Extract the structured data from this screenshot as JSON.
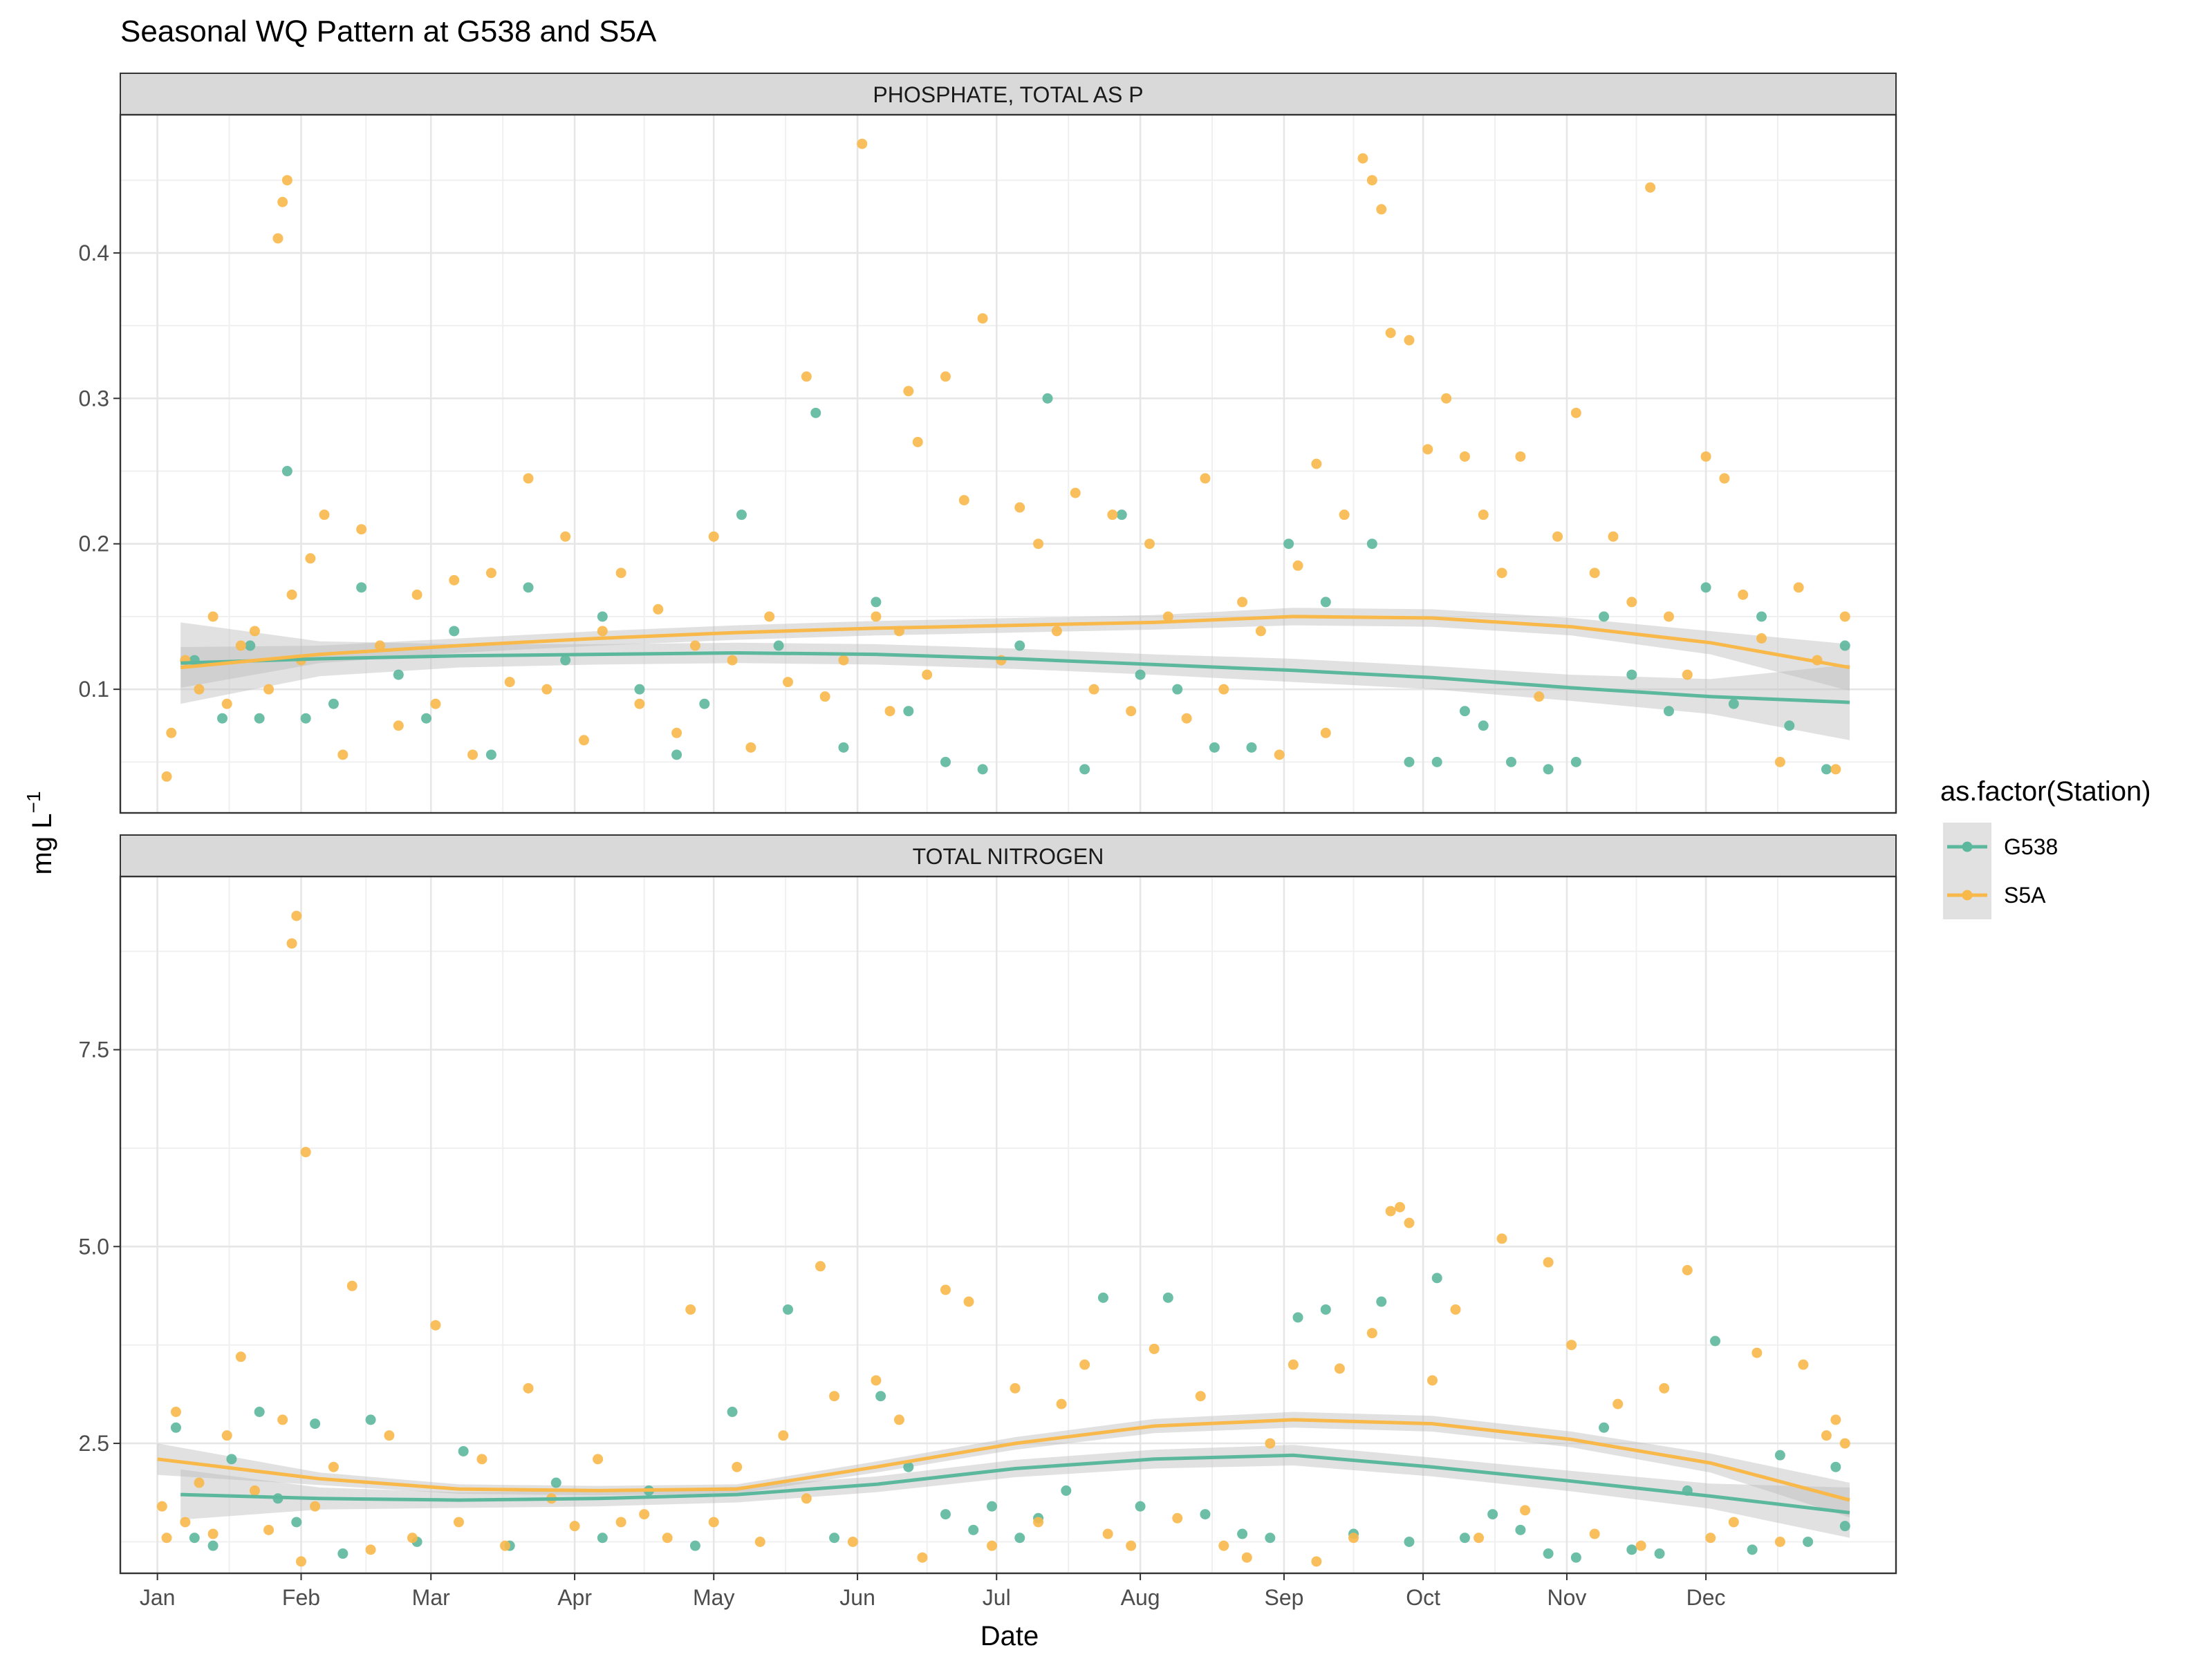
{
  "chart_data": {
    "type": "scatter",
    "title": "Seasonal WQ Pattern at G538 and S5A",
    "xlabel": "Date",
    "ylabel": "mg L",
    "ylabel_superscript": "−1",
    "x_ticks": [
      "Jan",
      "Feb",
      "Mar",
      "Apr",
      "May",
      "Jun",
      "Jul",
      "Aug",
      "Sep",
      "Oct",
      "Nov",
      "Dec"
    ],
    "x_units": "day of year",
    "xlim": [
      -8,
      375
    ],
    "grid": true,
    "legend": {
      "title": "as.factor(Station)",
      "position": "right",
      "entries": [
        "G538",
        "S5A"
      ]
    },
    "colors": {
      "G538": "#5cb89c",
      "S5A": "#f8b84a",
      "ribbon": "#bdbdbd"
    },
    "facets": [
      {
        "strip": "PHOSPHATE, TOTAL AS P",
        "ylim": [
          0.015,
          0.495
        ],
        "y_ticks": [
          0.1,
          0.2,
          0.3,
          0.4
        ],
        "y_tick_labels": [
          "0.1",
          "0.2",
          "0.3",
          "0.4"
        ],
        "series": [
          {
            "name": "G538",
            "trend_x": [
              5,
              35,
              65,
              95,
              125,
              155,
              185,
              215,
              245,
              275,
              305,
              335,
              365
            ],
            "trend_y": [
              0.118,
              0.121,
              0.123,
              0.124,
              0.125,
              0.124,
              0.121,
              0.117,
              0.113,
              0.108,
              0.101,
              0.095,
              0.091
            ],
            "ribbon_hw": [
              0.028,
              0.012,
              0.008,
              0.007,
              0.007,
              0.007,
              0.007,
              0.007,
              0.008,
              0.008,
              0.009,
              0.012,
              0.026
            ],
            "points_x": [
              8,
              14,
              20,
              22,
              28,
              32,
              38,
              44,
              52,
              58,
              64,
              72,
              80,
              88,
              96,
              104,
              112,
              118,
              126,
              134,
              142,
              148,
              155,
              162,
              170,
              178,
              186,
              192,
              200,
              208,
              212,
              220,
              228,
              236,
              244,
              252,
              262,
              270,
              276,
              282,
              286,
              292,
              300,
              306,
              312,
              318,
              326,
              334,
              340,
              346,
              352,
              360,
              364
            ],
            "points_y": [
              0.12,
              0.08,
              0.13,
              0.08,
              0.25,
              0.08,
              0.09,
              0.17,
              0.11,
              0.08,
              0.14,
              0.055,
              0.17,
              0.12,
              0.15,
              0.1,
              0.055,
              0.09,
              0.22,
              0.13,
              0.29,
              0.06,
              0.16,
              0.085,
              0.05,
              0.045,
              0.13,
              0.3,
              0.045,
              0.22,
              0.11,
              0.1,
              0.06,
              0.06,
              0.2,
              0.16,
              0.2,
              0.05,
              0.05,
              0.085,
              0.075,
              0.05,
              0.045,
              0.05,
              0.15,
              0.11,
              0.085,
              0.17,
              0.09,
              0.15,
              0.075,
              0.045,
              0.13
            ]
          },
          {
            "name": "S5A",
            "trend_x": [
              5,
              35,
              65,
              95,
              125,
              155,
              185,
              215,
              245,
              275,
              305,
              335,
              365
            ],
            "trend_y": [
              0.115,
              0.124,
              0.13,
              0.135,
              0.139,
              0.142,
              0.144,
              0.146,
              0.15,
              0.149,
              0.143,
              0.132,
              0.115
            ],
            "ribbon_hw": [
              0.014,
              0.006,
              0.005,
              0.005,
              0.005,
              0.005,
              0.005,
              0.005,
              0.006,
              0.006,
              0.006,
              0.008,
              0.016
            ],
            "points_x": [
              2,
              3,
              6,
              9,
              12,
              15,
              18,
              21,
              24,
              26,
              27,
              28,
              29,
              31,
              33,
              36,
              40,
              44,
              48,
              52,
              56,
              60,
              64,
              68,
              72,
              76,
              80,
              84,
              88,
              92,
              96,
              100,
              104,
              108,
              112,
              116,
              120,
              124,
              128,
              132,
              136,
              140,
              144,
              148,
              152,
              155,
              158,
              160,
              162,
              164,
              166,
              170,
              174,
              178,
              182,
              186,
              190,
              194,
              198,
              202,
              206,
              210,
              214,
              218,
              222,
              226,
              230,
              234,
              238,
              242,
              246,
              250,
              252,
              256,
              260,
              262,
              264,
              266,
              270,
              274,
              278,
              282,
              286,
              290,
              294,
              298,
              302,
              306,
              310,
              314,
              318,
              322,
              326,
              330,
              334,
              338,
              342,
              346,
              350,
              354,
              358,
              362,
              364
            ],
            "points_y": [
              0.04,
              0.07,
              0.12,
              0.1,
              0.15,
              0.09,
              0.13,
              0.14,
              0.1,
              0.41,
              0.435,
              0.45,
              0.165,
              0.12,
              0.19,
              0.22,
              0.055,
              0.21,
              0.13,
              0.075,
              0.165,
              0.09,
              0.175,
              0.055,
              0.18,
              0.105,
              0.245,
              0.1,
              0.205,
              0.065,
              0.14,
              0.18,
              0.09,
              0.155,
              0.07,
              0.13,
              0.205,
              0.12,
              0.06,
              0.15,
              0.105,
              0.315,
              0.095,
              0.12,
              0.475,
              0.15,
              0.085,
              0.14,
              0.305,
              0.27,
              0.11,
              0.315,
              0.23,
              0.355,
              0.12,
              0.225,
              0.2,
              0.14,
              0.235,
              0.1,
              0.22,
              0.085,
              0.2,
              0.15,
              0.08,
              0.245,
              0.1,
              0.16,
              0.14,
              0.055,
              0.185,
              0.255,
              0.07,
              0.22,
              0.465,
              0.45,
              0.43,
              0.345,
              0.34,
              0.265,
              0.3,
              0.26,
              0.22,
              0.18,
              0.26,
              0.095,
              0.205,
              0.29,
              0.18,
              0.205,
              0.16,
              0.445,
              0.15,
              0.11,
              0.26,
              0.245,
              0.165,
              0.135,
              0.05,
              0.17,
              0.12,
              0.045,
              0.15
            ]
          }
        ]
      },
      {
        "strip": "TOTAL NITROGEN",
        "ylim": [
          0.85,
          9.7
        ],
        "y_ticks": [
          2.5,
          5.0,
          7.5
        ],
        "y_tick_labels": [
          "2.5",
          "5.0",
          "7.5"
        ],
        "series": [
          {
            "name": "G538",
            "trend_x": [
              5,
              35,
              65,
              95,
              125,
              155,
              185,
              215,
              245,
              275,
              305,
              335,
              365
            ],
            "trend_y": [
              1.85,
              1.8,
              1.78,
              1.8,
              1.85,
              1.98,
              2.18,
              2.3,
              2.35,
              2.2,
              2.02,
              1.83,
              1.62
            ],
            "ribbon_hw": [
              0.32,
              0.14,
              0.1,
              0.1,
              0.1,
              0.1,
              0.11,
              0.12,
              0.13,
              0.12,
              0.13,
              0.16,
              0.32
            ],
            "points_x": [
              4,
              8,
              12,
              16,
              22,
              26,
              30,
              34,
              40,
              46,
              56,
              66,
              76,
              86,
              96,
              106,
              116,
              124,
              136,
              146,
              156,
              162,
              170,
              176,
              180,
              186,
              190,
              196,
              204,
              212,
              218,
              226,
              234,
              240,
              246,
              252,
              258,
              264,
              270,
              276,
              282,
              288,
              294,
              300,
              306,
              312,
              318,
              324,
              330,
              336,
              344,
              350,
              356,
              362,
              364
            ],
            "points_y": [
              2.7,
              1.3,
              1.2,
              2.3,
              2.9,
              1.8,
              1.5,
              2.75,
              1.1,
              2.8,
              1.25,
              2.4,
              1.2,
              2.0,
              1.3,
              1.9,
              1.2,
              2.9,
              4.2,
              1.3,
              3.1,
              2.2,
              1.6,
              1.4,
              1.7,
              1.3,
              1.55,
              1.9,
              4.35,
              1.7,
              4.35,
              1.6,
              1.35,
              1.3,
              4.1,
              4.2,
              1.35,
              4.3,
              1.25,
              4.6,
              1.3,
              1.6,
              1.4,
              1.1,
              1.05,
              2.7,
              1.15,
              1.1,
              1.9,
              3.8,
              1.15,
              2.35,
              1.25,
              2.2,
              1.45
            ]
          },
          {
            "name": "S5A",
            "trend_x": [
              0,
              35,
              65,
              95,
              125,
              155,
              185,
              215,
              245,
              275,
              305,
              335,
              365
            ],
            "trend_y": [
              2.3,
              2.05,
              1.92,
              1.9,
              1.92,
              2.2,
              2.5,
              2.72,
              2.8,
              2.75,
              2.55,
              2.25,
              1.78
            ],
            "ribbon_hw": [
              0.2,
              0.08,
              0.06,
              0.06,
              0.06,
              0.07,
              0.08,
              0.09,
              0.1,
              0.1,
              0.1,
              0.12,
              0.22
            ],
            "points_x": [
              1,
              2,
              4,
              6,
              9,
              12,
              15,
              18,
              21,
              24,
              27,
              29,
              30,
              31,
              32,
              34,
              38,
              42,
              46,
              50,
              55,
              60,
              65,
              70,
              75,
              80,
              85,
              90,
              95,
              100,
              105,
              110,
              115,
              120,
              125,
              130,
              135,
              140,
              143,
              146,
              150,
              155,
              160,
              165,
              170,
              175,
              180,
              185,
              190,
              195,
              200,
              205,
              210,
              215,
              220,
              225,
              230,
              235,
              240,
              245,
              250,
              255,
              258,
              262,
              266,
              268,
              270,
              275,
              280,
              285,
              290,
              295,
              300,
              305,
              310,
              315,
              320,
              325,
              330,
              335,
              340,
              345,
              350,
              355,
              360,
              362,
              364
            ],
            "points_y": [
              1.7,
              1.3,
              2.9,
              1.5,
              2.0,
              1.35,
              2.6,
              3.6,
              1.9,
              1.4,
              2.8,
              8.85,
              9.2,
              1.0,
              6.2,
              1.7,
              2.2,
              4.5,
              1.15,
              2.6,
              1.3,
              4.0,
              1.5,
              2.3,
              1.2,
              3.2,
              1.8,
              1.45,
              2.3,
              1.5,
              1.6,
              1.3,
              4.2,
              1.5,
              2.2,
              1.25,
              2.6,
              1.8,
              4.75,
              3.1,
              1.25,
              3.3,
              2.8,
              1.05,
              4.45,
              4.3,
              1.2,
              3.2,
              1.5,
              3.0,
              3.5,
              1.35,
              1.2,
              3.7,
              1.55,
              3.1,
              1.2,
              1.05,
              2.5,
              3.5,
              1.0,
              3.45,
              1.3,
              3.9,
              5.45,
              5.5,
              5.3,
              3.3,
              4.2,
              1.3,
              5.1,
              1.65,
              4.8,
              3.75,
              1.35,
              3.0,
              1.2,
              3.2,
              4.7,
              1.3,
              1.5,
              3.65,
              1.25,
              3.5,
              2.6,
              2.8,
              2.5
            ]
          }
        ]
      }
    ]
  }
}
